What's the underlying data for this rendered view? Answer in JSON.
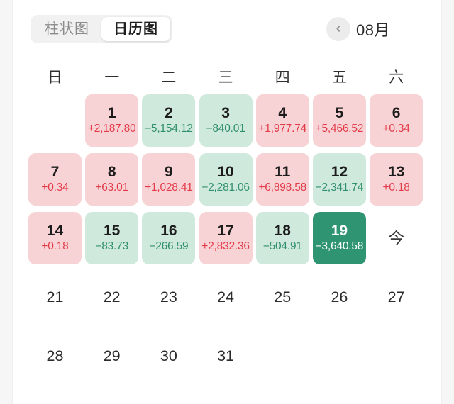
{
  "header": {
    "tabs": [
      {
        "id": "bar-chart",
        "label": "柱状图",
        "selected": false
      },
      {
        "id": "calendar-chart",
        "label": "日历图",
        "selected": true
      }
    ],
    "back_icon": "chevron-left",
    "back_glyph": "‹",
    "month_label": "08月"
  },
  "calendar": {
    "weekday_headers": [
      "日",
      "一",
      "二",
      "三",
      "四",
      "五",
      "六"
    ],
    "weeks": [
      [
        {
          "type": "empty"
        },
        {
          "type": "profit",
          "day": "1",
          "value": "+2,187.80"
        },
        {
          "type": "loss",
          "day": "2",
          "value": "−5,154.12"
        },
        {
          "type": "loss",
          "day": "3",
          "value": "−840.01"
        },
        {
          "type": "profit",
          "day": "4",
          "value": "+1,977.74"
        },
        {
          "type": "profit",
          "day": "5",
          "value": "+5,466.52"
        },
        {
          "type": "profit",
          "day": "6",
          "value": "+0.34"
        }
      ],
      [
        {
          "type": "profit",
          "day": "7",
          "value": "+0.34"
        },
        {
          "type": "profit",
          "day": "8",
          "value": "+63.01"
        },
        {
          "type": "profit",
          "day": "9",
          "value": "+1,028.41"
        },
        {
          "type": "loss",
          "day": "10",
          "value": "−2,281.06"
        },
        {
          "type": "profit",
          "day": "11",
          "value": "+6,898.58"
        },
        {
          "type": "loss",
          "day": "12",
          "value": "−2,341.74"
        },
        {
          "type": "profit",
          "day": "13",
          "value": "+0.18"
        }
      ],
      [
        {
          "type": "profit",
          "day": "14",
          "value": "+0.18"
        },
        {
          "type": "loss",
          "day": "15",
          "value": "−83.73"
        },
        {
          "type": "loss",
          "day": "16",
          "value": "−266.59"
        },
        {
          "type": "profit",
          "day": "17",
          "value": "+2,832.36"
        },
        {
          "type": "loss",
          "day": "18",
          "value": "−504.91"
        },
        {
          "type": "today",
          "day": "19",
          "value": "−3,640.58"
        },
        {
          "type": "marker",
          "day": "今"
        }
      ],
      [
        {
          "type": "plain",
          "day": "21"
        },
        {
          "type": "plain",
          "day": "22"
        },
        {
          "type": "plain",
          "day": "23"
        },
        {
          "type": "plain",
          "day": "24"
        },
        {
          "type": "plain",
          "day": "25"
        },
        {
          "type": "plain",
          "day": "26"
        },
        {
          "type": "plain",
          "day": "27"
        }
      ],
      [
        {
          "type": "plain",
          "day": "28"
        },
        {
          "type": "plain",
          "day": "29"
        },
        {
          "type": "plain",
          "day": "30"
        },
        {
          "type": "plain",
          "day": "31"
        },
        {
          "type": "empty"
        },
        {
          "type": "empty"
        },
        {
          "type": "empty"
        }
      ]
    ]
  },
  "colors": {
    "profit_bg": "#f8d3d6",
    "profit_text": "#e23a48",
    "loss_bg": "#cfe9dc",
    "loss_text": "#2f8f6c",
    "today_bg": "#2f9472",
    "today_text": "#ffffff",
    "toggle_bg": "#f1f1f2",
    "edge_strip": "#f6f6f6"
  }
}
